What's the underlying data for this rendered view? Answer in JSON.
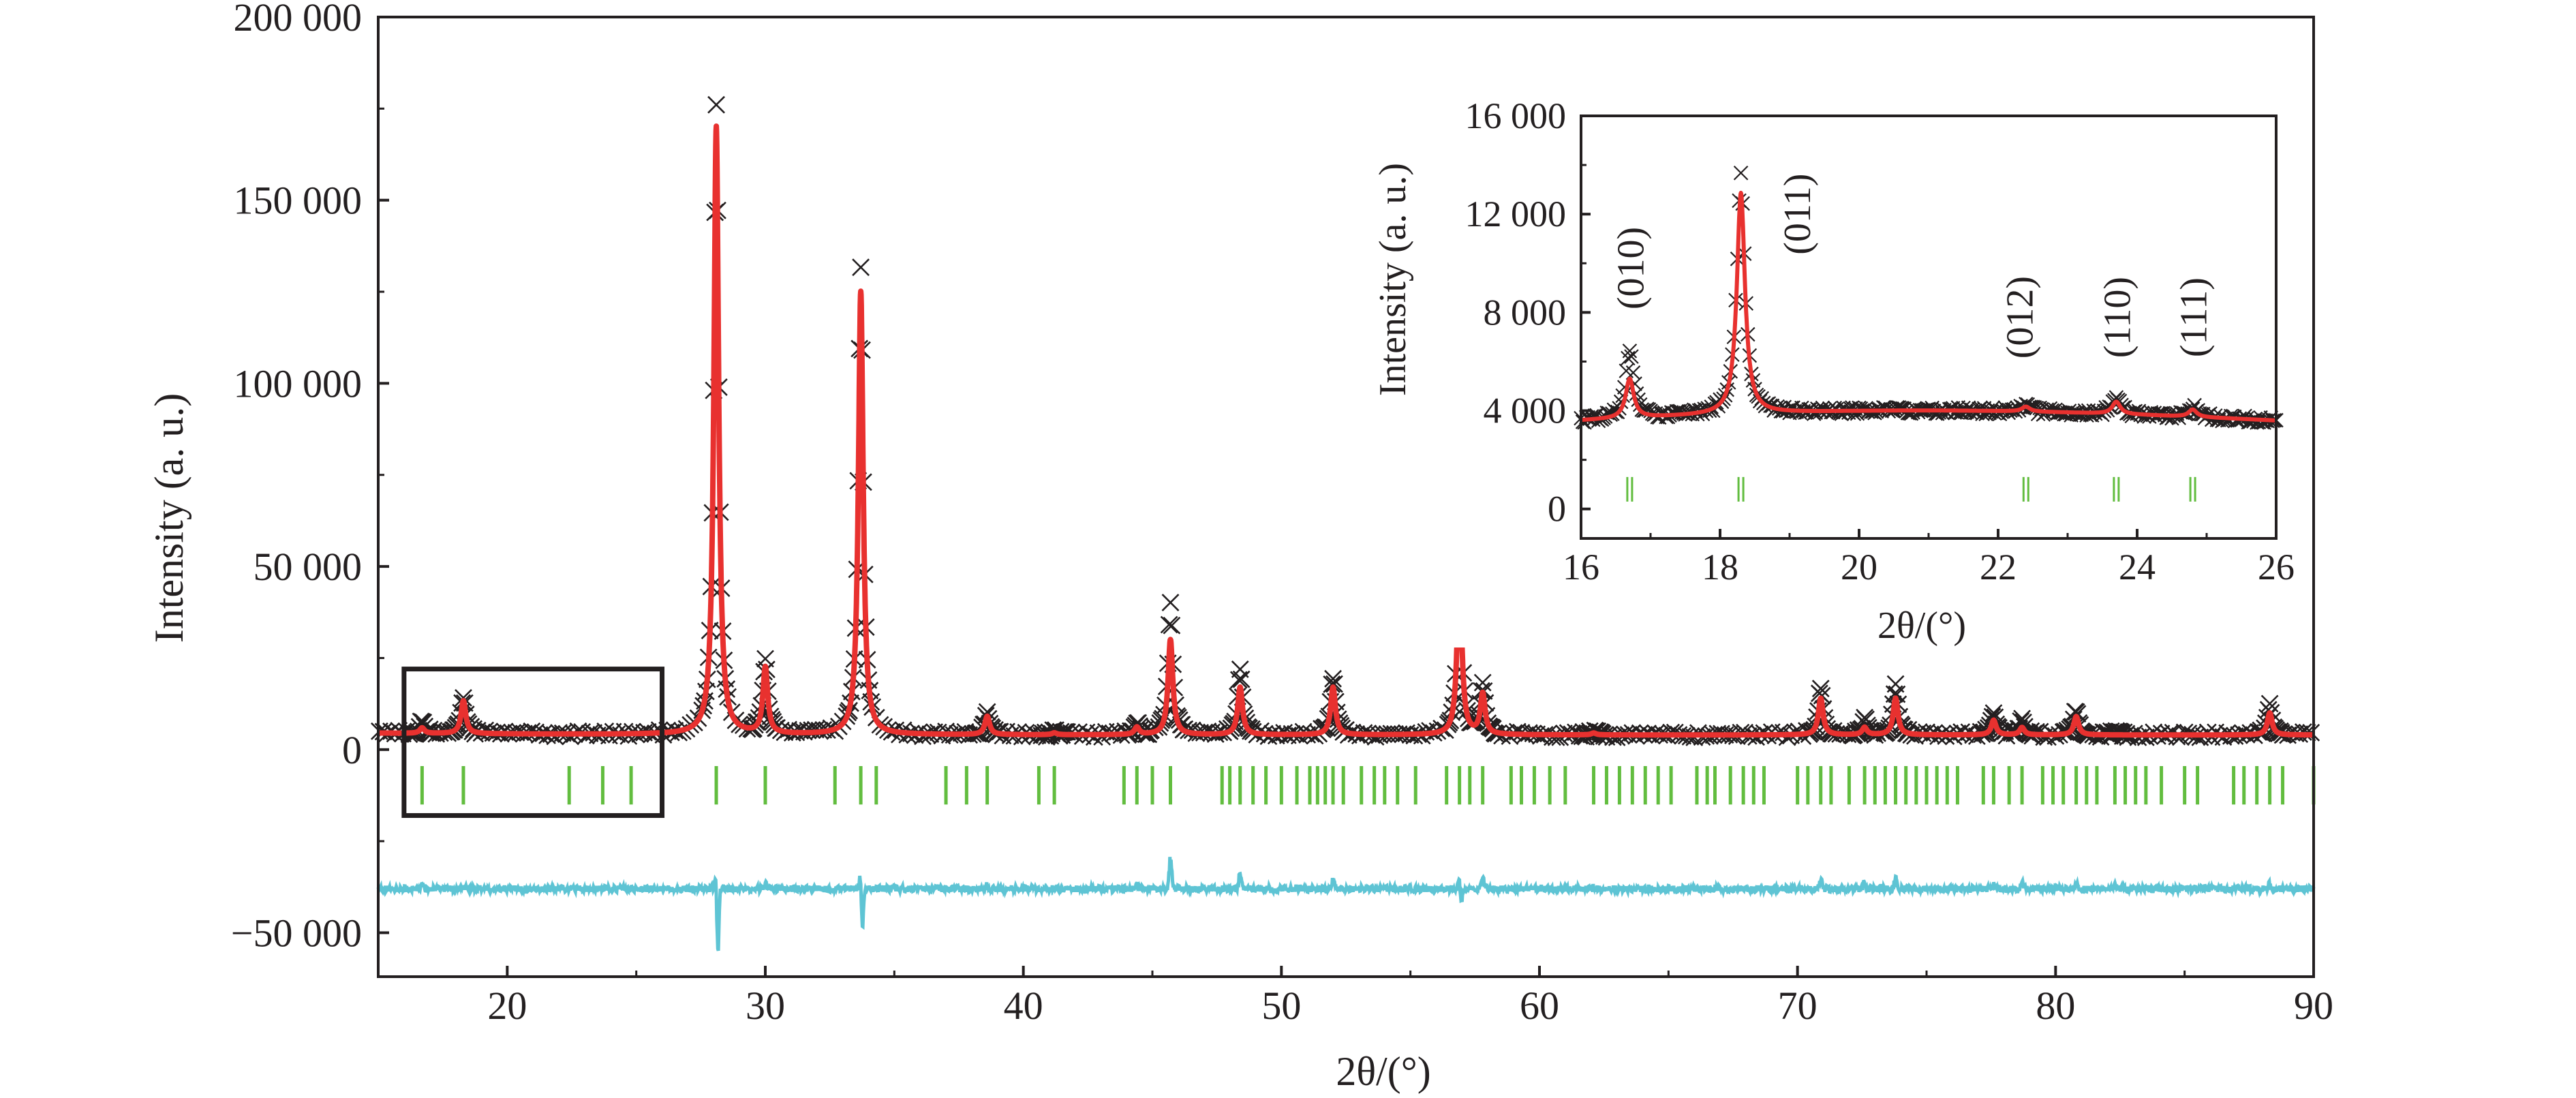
{
  "colors": {
    "observed": "#231f20",
    "calculated": "#e8312f",
    "difference": "#5ec4d4",
    "bragg": "#62bd3f",
    "frame": "#231f20"
  },
  "chart_data": [
    {
      "id": "main",
      "type": "line",
      "title": "",
      "xlabel": "2θ/(°)",
      "ylabel": "Intensity (a. u.)",
      "xlim": [
        15,
        90
      ],
      "ylim": [
        -62000,
        200000
      ],
      "xticks": [
        20,
        30,
        40,
        50,
        60,
        70,
        80,
        90
      ],
      "xtick_labels": [
        "20",
        "30",
        "40",
        "50",
        "60",
        "70",
        "80",
        "90"
      ],
      "yticks": [
        -50000,
        0,
        50000,
        100000,
        150000,
        200000
      ],
      "ytick_labels": [
        "−50 000",
        "0",
        "50 000",
        "100 000",
        "150 000",
        "200 000"
      ],
      "background": 4000,
      "difference_offset": -38000,
      "series": [
        {
          "name": "Observed",
          "marker": "x",
          "color": "#231f20"
        },
        {
          "name": "Calculated",
          "color": "#e8312f"
        },
        {
          "name": "Difference",
          "color": "#5ec4d4"
        },
        {
          "name": "Bragg positions",
          "color": "#62bd3f"
        }
      ],
      "peaks": [
        {
          "x": 16.7,
          "y": 5500,
          "obs": 7000,
          "dip": 0
        },
        {
          "x": 18.3,
          "y": 13000,
          "obs": 14000,
          "dip": 0
        },
        {
          "x": 28.1,
          "y": 170000,
          "obs": 176000,
          "dip": -20000
        },
        {
          "x": 30.0,
          "y": 22000,
          "obs": 24000,
          "dip": 0
        },
        {
          "x": 33.7,
          "y": 125000,
          "obs": 131000,
          "dip": -12000
        },
        {
          "x": 38.6,
          "y": 9000,
          "obs": 10000,
          "dip": 0
        },
        {
          "x": 41.2,
          "y": 4500,
          "obs": 5000,
          "dip": 0
        },
        {
          "x": 44.4,
          "y": 6000,
          "obs": 7000,
          "dip": 0
        },
        {
          "x": 45.7,
          "y": 30000,
          "obs": 40000,
          "dip": 0
        },
        {
          "x": 48.4,
          "y": 17000,
          "obs": 22000,
          "dip": 0
        },
        {
          "x": 52.0,
          "y": 17000,
          "obs": 20000,
          "dip": 0
        },
        {
          "x": 56.9,
          "y": 48000,
          "obs": 53000,
          "dip": -6000
        },
        {
          "x": 57.8,
          "y": 15000,
          "obs": 18000,
          "dip": 0
        },
        {
          "x": 62.1,
          "y": 4500,
          "obs": 5000,
          "dip": 0
        },
        {
          "x": 70.9,
          "y": 14000,
          "obs": 17000,
          "dip": 0
        },
        {
          "x": 72.6,
          "y": 6000,
          "obs": 8000,
          "dip": 0
        },
        {
          "x": 73.8,
          "y": 14000,
          "obs": 18000,
          "dip": 0
        },
        {
          "x": 77.6,
          "y": 8000,
          "obs": 10000,
          "dip": 0
        },
        {
          "x": 78.7,
          "y": 6000,
          "obs": 8000,
          "dip": 0
        },
        {
          "x": 80.8,
          "y": 9000,
          "obs": 11000,
          "dip": 0
        },
        {
          "x": 82.3,
          "y": 4000,
          "obs": 5000,
          "dip": 0
        },
        {
          "x": 88.3,
          "y": 10000,
          "obs": 12000,
          "dip": 0
        }
      ],
      "bragg_positions": [
        16.7,
        18.3,
        22.4,
        23.7,
        24.8,
        28.1,
        30.0,
        32.7,
        33.7,
        34.3,
        37.0,
        37.8,
        38.6,
        40.6,
        41.2,
        43.9,
        44.4,
        45.0,
        45.7,
        47.7,
        48.0,
        48.4,
        48.9,
        49.4,
        50.0,
        50.6,
        51.1,
        51.4,
        51.7,
        52.0,
        52.4,
        53.1,
        53.6,
        54.0,
        54.5,
        55.2,
        56.4,
        56.9,
        57.3,
        57.8,
        58.9,
        59.3,
        59.8,
        60.4,
        61.0,
        62.1,
        62.6,
        63.1,
        63.6,
        64.1,
        64.6,
        65.1,
        66.1,
        66.5,
        66.8,
        67.4,
        67.9,
        68.3,
        68.7,
        70.0,
        70.4,
        70.9,
        71.3,
        72.0,
        72.6,
        73.0,
        73.4,
        73.8,
        74.2,
        74.6,
        75.0,
        75.4,
        75.8,
        76.2,
        77.2,
        77.6,
        78.2,
        78.7,
        79.5,
        79.9,
        80.3,
        80.8,
        81.2,
        81.6,
        82.3,
        82.7,
        83.1,
        83.5,
        84.1,
        85.0,
        85.5,
        86.9,
        87.3,
        87.8,
        88.3,
        88.8,
        90.0
      ],
      "zoom_box": {
        "x": [
          16,
          26
        ],
        "y": [
          -18000,
          22000
        ]
      }
    },
    {
      "id": "inset",
      "type": "line",
      "title": "",
      "xlabel": "2θ/(°)",
      "ylabel": "Intensity (a. u.)",
      "xlim": [
        16,
        26
      ],
      "ylim": [
        -1200,
        16000
      ],
      "xticks": [
        16,
        18,
        20,
        22,
        24,
        26
      ],
      "xtick_labels": [
        "16",
        "18",
        "20",
        "22",
        "24",
        "26"
      ],
      "yticks": [
        0,
        4000,
        8000,
        12000,
        16000
      ],
      "ytick_labels": [
        "0",
        "4 000",
        "8 000",
        "12 000",
        "16 000"
      ],
      "background": 3600,
      "peaks": [
        {
          "x": 16.7,
          "y": 5600,
          "obs": 6800,
          "hkl": "(010)"
        },
        {
          "x": 18.3,
          "y": 13000,
          "obs": 13700,
          "hkl": "(011)"
        },
        {
          "x": 22.4,
          "y": 4200,
          "obs": 4300,
          "hkl": "(012)"
        },
        {
          "x": 23.7,
          "y": 4500,
          "obs": 4700,
          "hkl": "(110)"
        },
        {
          "x": 24.8,
          "y": 4300,
          "obs": 4400,
          "hkl": "(111)"
        }
      ],
      "bragg_positions": [
        16.7,
        18.3,
        22.4,
        23.7,
        24.8
      ],
      "annotations": [
        {
          "text": "(010)",
          "x": 16.7,
          "y": 9800
        },
        {
          "text": "(011)",
          "x": 19.1,
          "y": 12000
        },
        {
          "text": "(012)",
          "x": 22.3,
          "y": 7800
        },
        {
          "text": "(110)",
          "x": 23.7,
          "y": 7800
        },
        {
          "text": "(111)",
          "x": 24.8,
          "y": 7800
        }
      ]
    }
  ]
}
